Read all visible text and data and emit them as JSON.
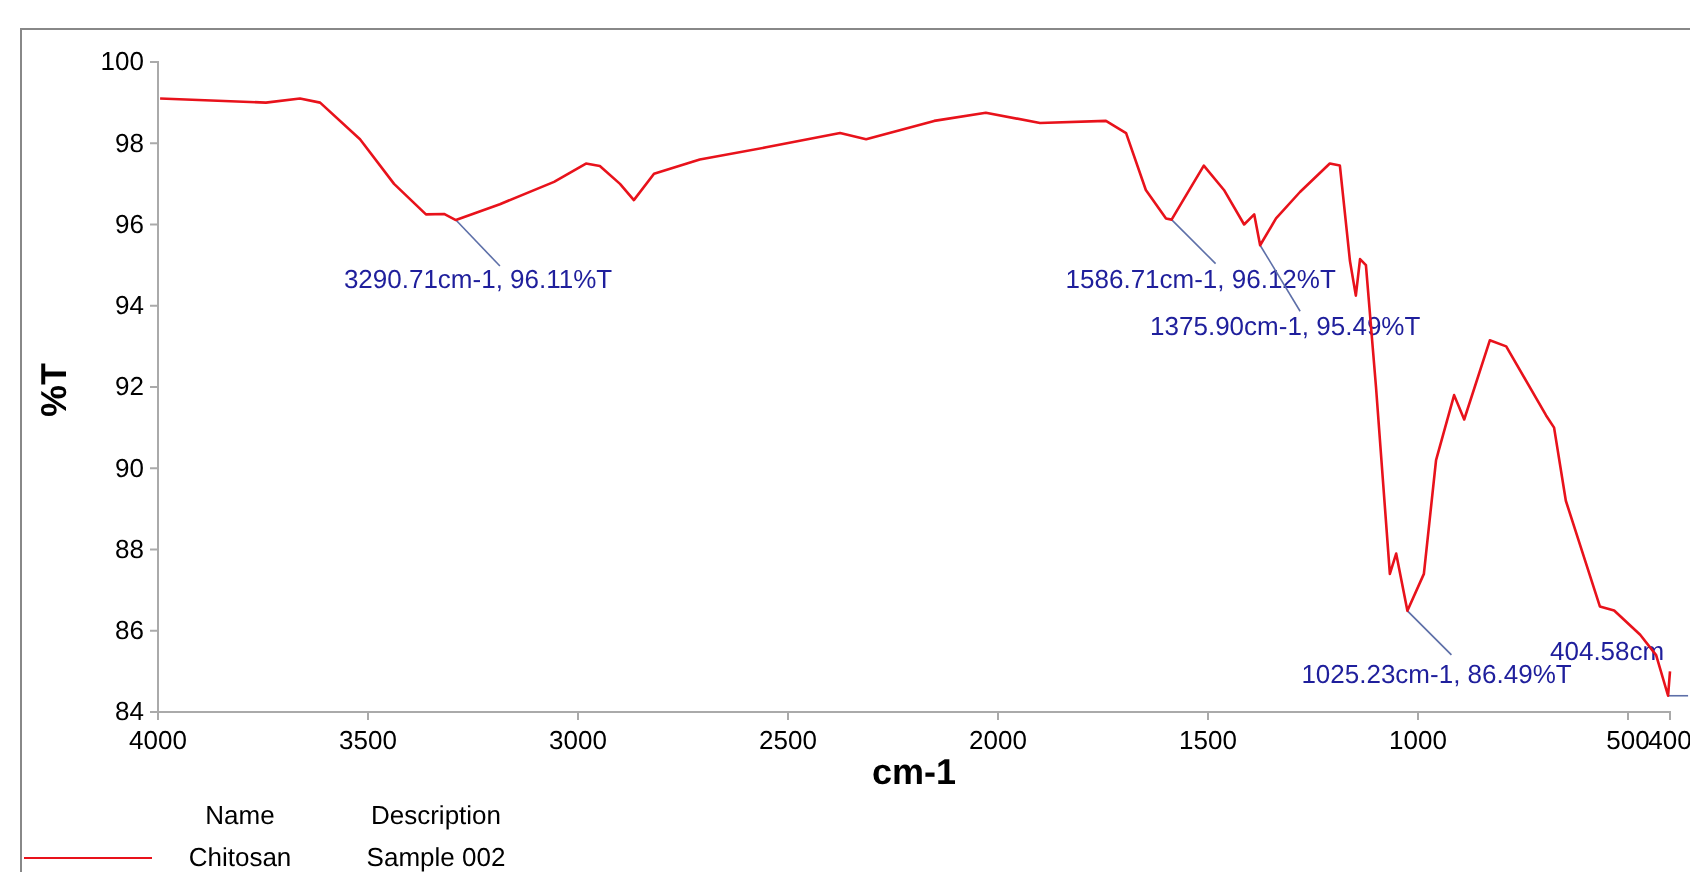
{
  "chart_data": {
    "type": "line",
    "xlabel": "cm-1",
    "ylabel": "%T",
    "xlim": [
      4000,
      400
    ],
    "xticks": [
      4000,
      3500,
      3000,
      2500,
      2000,
      1500,
      1000,
      500,
      400
    ],
    "ylim": [
      84,
      100
    ],
    "yticks": [
      84,
      86,
      88,
      90,
      92,
      94,
      96,
      98,
      100
    ],
    "grid": false,
    "legend": "bottom left",
    "legend_title": "Name",
    "marker": "none",
    "line_style": "solid",
    "series": [
      {
        "name": "Chitosan",
        "color": "#e8121b",
        "x": [
          3995,
          3743,
          3662,
          3614,
          3519,
          3438,
          3362,
          3319,
          3290.71,
          3186,
          3057,
          2981,
          2948,
          2900,
          2867,
          2819,
          2710,
          2552,
          2376,
          2314,
          2152,
          2029,
          1900,
          1743,
          1695,
          1648,
          1600,
          1586.71,
          1510,
          1462,
          1414,
          1390,
          1375.9,
          1338,
          1281,
          1210,
          1186,
          1162,
          1148,
          1138,
          1124,
          1100,
          1067,
          1052,
          1025.23,
          986,
          957,
          914,
          890,
          829,
          790,
          695,
          676,
          648,
          567,
          533,
          471,
          433,
          404.58,
          400
        ],
        "values": [
          99.1,
          99.0,
          99.1,
          99.0,
          98.1,
          97.0,
          96.25,
          96.26,
          96.11,
          96.5,
          97.05,
          97.5,
          97.44,
          97.0,
          96.6,
          97.25,
          97.6,
          97.9,
          98.25,
          98.1,
          98.55,
          98.75,
          98.5,
          98.55,
          98.25,
          96.85,
          96.15,
          96.12,
          97.45,
          96.85,
          96.0,
          96.25,
          95.49,
          96.15,
          96.8,
          97.5,
          97.45,
          95.1,
          94.25,
          95.15,
          95.0,
          92.0,
          87.4,
          87.9,
          86.49,
          87.4,
          90.2,
          91.8,
          91.2,
          93.15,
          93.0,
          91.3,
          91.0,
          89.2,
          86.6,
          86.5,
          85.9,
          85.4,
          84.4,
          85.0
        ]
      }
    ],
    "annotations": [
      {
        "text": "3290.71cm-1, 96.11%T",
        "x": 3290.71,
        "y": 96.11
      },
      {
        "text": "1586.71cm-1, 96.12%T",
        "x": 1586.71,
        "y": 96.12
      },
      {
        "text": "1375.90cm-1, 95.49%T",
        "x": 1375.9,
        "y": 95.49
      },
      {
        "text": "1025.23cm-1, 86.49%T",
        "x": 1025.23,
        "y": 86.49
      },
      {
        "text": "404.58cm",
        "x": 404.58,
        "y": 84.4
      },
      "Description",
      "Sample 002"
    ]
  }
}
